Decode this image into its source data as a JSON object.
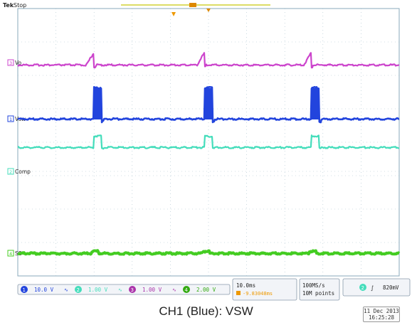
{
  "header": {
    "brand": "Tek",
    "run_state": "Stop"
  },
  "channels": [
    {
      "id": "ch3",
      "number": "3",
      "label": "Vo",
      "color": "#cc44cc",
      "scale": "1.00 V"
    },
    {
      "id": "ch1",
      "number": "1",
      "label": "Vsw",
      "color": "#2244dd",
      "scale": "10.0 V"
    },
    {
      "id": "ch2",
      "number": "2",
      "label": "Comp",
      "color": "#44ddbb",
      "scale": "1.00 V"
    },
    {
      "id": "ch4",
      "number": "4",
      "label": "SS",
      "color": "#44cc22",
      "scale": "2.00 V"
    }
  ],
  "status_bar": {
    "ch1_scale": "10.0 V",
    "ch2_scale": "1.00 V",
    "ch3_scale": "1.00 V",
    "ch4_scale": "2.00 V",
    "timebase": "10.0ms",
    "delay": "-9.83048ms",
    "sample_rate": "100MS/s",
    "record_length": "10M points",
    "trigger_channel": "2",
    "trigger_level": "820mV"
  },
  "caption": "CH1 (Blue): VSW",
  "date": {
    "day": "11 Dec 2013",
    "time": "16:25:28"
  },
  "chart_data": {
    "type": "line",
    "title": "",
    "xlabel": "",
    "ylabel": "",
    "xlim": [
      0,
      100
    ],
    "pulse_times": [
      20,
      49,
      77,
      106
    ],
    "pulse_width": 2,
    "series": [
      {
        "name": "Vo",
        "waveform": "sawtooth-drop",
        "baseline": 0,
        "amplitude": 0.9,
        "color": "#cc44cc"
      },
      {
        "name": "Vsw",
        "waveform": "pulse",
        "baseline": 0,
        "amplitude": 2.2,
        "color": "#2244dd"
      },
      {
        "name": "Comp",
        "waveform": "pulse",
        "baseline": 0,
        "amplitude": 0.8,
        "color": "#44ddbb"
      },
      {
        "name": "SS",
        "waveform": "flat-bump",
        "baseline": 0,
        "amplitude": 0.15,
        "color": "#44cc22"
      }
    ]
  }
}
